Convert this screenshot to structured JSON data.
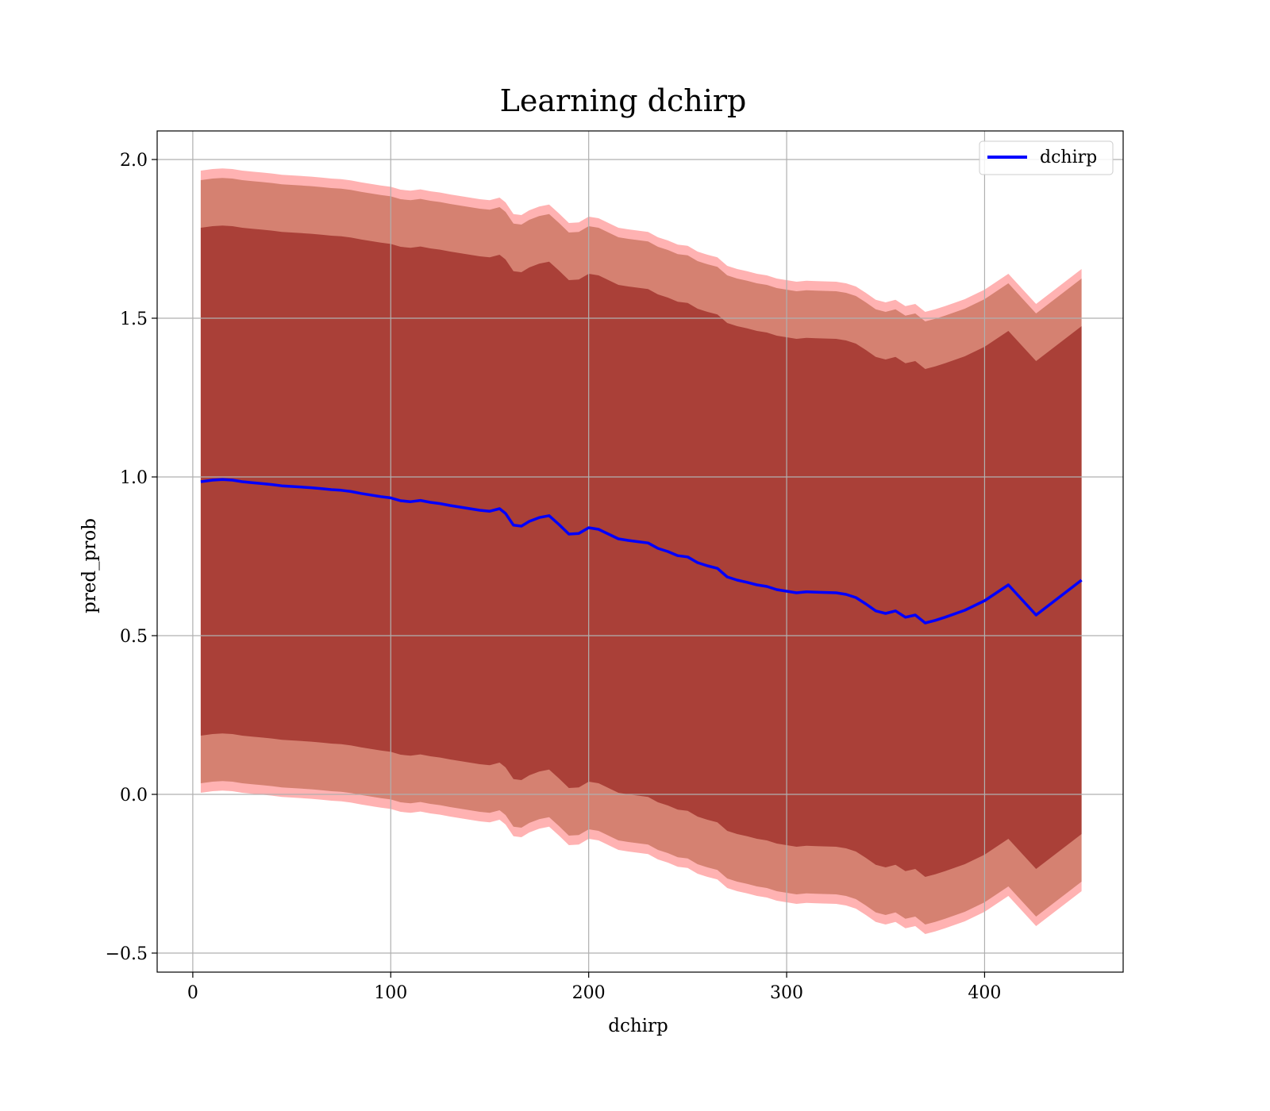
{
  "chart_data": {
    "type": "area",
    "title": "Learning dchirp",
    "xlabel": "dchirp",
    "ylabel": "pred_prob",
    "xlim": [
      -18,
      470
    ],
    "ylim": [
      -0.56,
      2.09
    ],
    "xticks": [
      0,
      100,
      200,
      300,
      400
    ],
    "yticks": [
      -0.5,
      0.0,
      0.5,
      1.0,
      1.5,
      2.0
    ],
    "xtick_labels": [
      "0",
      "100",
      "200",
      "300",
      "400"
    ],
    "ytick_labels": [
      "−0.5",
      "0.0",
      "0.5",
      "1.0",
      "1.5",
      "2.0"
    ],
    "grid": true,
    "legend": {
      "placement": "top-right",
      "entries": [
        "dchirp"
      ]
    },
    "colors": {
      "line": "#0000ff",
      "outer_band": "#ff0000",
      "inner_band": "#800000",
      "middle_band": "#b35a3c"
    },
    "series": [
      {
        "name": "dchirp",
        "x": [
          4,
          10,
          15,
          20,
          25,
          30,
          35,
          40,
          45,
          50,
          55,
          60,
          65,
          70,
          75,
          80,
          85,
          90,
          95,
          100,
          105,
          110,
          115,
          120,
          125,
          130,
          135,
          140,
          145,
          150,
          155,
          158,
          162,
          166,
          170,
          175,
          180,
          185,
          190,
          195,
          200,
          205,
          210,
          215,
          220,
          225,
          230,
          235,
          240,
          245,
          250,
          255,
          260,
          265,
          270,
          275,
          280,
          285,
          290,
          295,
          300,
          305,
          310,
          315,
          320,
          325,
          330,
          335,
          340,
          345,
          350,
          355,
          360,
          365,
          370,
          375,
          380,
          390,
          400,
          412,
          426,
          449
        ],
        "y": [
          0.985,
          0.99,
          0.992,
          0.99,
          0.985,
          0.982,
          0.979,
          0.976,
          0.972,
          0.97,
          0.968,
          0.966,
          0.963,
          0.96,
          0.958,
          0.954,
          0.948,
          0.943,
          0.938,
          0.934,
          0.925,
          0.922,
          0.926,
          0.92,
          0.916,
          0.91,
          0.905,
          0.9,
          0.895,
          0.892,
          0.9,
          0.885,
          0.848,
          0.845,
          0.86,
          0.872,
          0.878,
          0.85,
          0.82,
          0.822,
          0.84,
          0.835,
          0.82,
          0.805,
          0.8,
          0.796,
          0.792,
          0.775,
          0.765,
          0.752,
          0.748,
          0.73,
          0.72,
          0.712,
          0.685,
          0.675,
          0.668,
          0.66,
          0.655,
          0.645,
          0.64,
          0.635,
          0.638,
          0.637,
          0.636,
          0.635,
          0.63,
          0.62,
          0.6,
          0.578,
          0.57,
          0.578,
          0.558,
          0.565,
          0.54,
          0.548,
          0.558,
          0.58,
          0.61,
          0.66,
          0.565,
          0.675
        ]
      }
    ],
    "bands": [
      {
        "lower_offset": -0.98,
        "upper_offset": 0.98
      },
      {
        "lower_offset": -0.95,
        "upper_offset": 0.95
      },
      {
        "lower_offset": -0.8,
        "upper_offset": 0.8
      }
    ]
  }
}
